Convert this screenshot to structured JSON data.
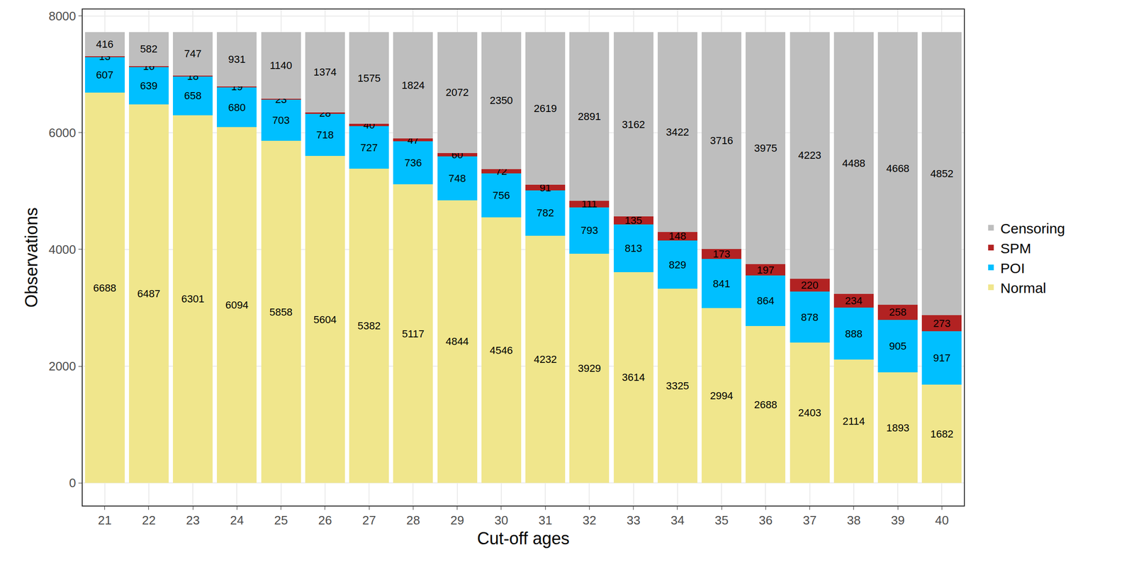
{
  "chart_data": {
    "type": "bar",
    "stacked": true,
    "data_labels": true,
    "grid": true,
    "legend": "right",
    "x_label": "Cut-off ages",
    "y_label": "Observations",
    "categories": [
      "21",
      "22",
      "23",
      "24",
      "25",
      "26",
      "27",
      "28",
      "29",
      "30",
      "31",
      "32",
      "33",
      "34",
      "35",
      "36",
      "37",
      "38",
      "39",
      "40"
    ],
    "ylim": [
      -386,
      8110
    ],
    "yticks": [
      0,
      2000,
      4000,
      6000,
      8000
    ],
    "series": [
      {
        "name": "Normal",
        "color": "#F0E68C",
        "values": [
          6688,
          6487,
          6301,
          6094,
          5858,
          5604,
          5382,
          5117,
          4844,
          4546,
          4232,
          3929,
          3614,
          3325,
          2994,
          2688,
          2403,
          2114,
          1893,
          1682
        ]
      },
      {
        "name": "POI",
        "color": "#00BFFF",
        "values": [
          607,
          639,
          658,
          680,
          703,
          718,
          727,
          736,
          748,
          756,
          782,
          793,
          813,
          829,
          841,
          864,
          878,
          888,
          905,
          917
        ]
      },
      {
        "name": "SPM",
        "color": "#B22222",
        "values": [
          13,
          16,
          18,
          19,
          23,
          28,
          40,
          47,
          60,
          72,
          91,
          111,
          135,
          148,
          173,
          197,
          220,
          234,
          258,
          273
        ]
      },
      {
        "name": "Censoring",
        "color": "#BEBEBE",
        "values": [
          416,
          582,
          747,
          931,
          1140,
          1374,
          1575,
          1824,
          2072,
          2350,
          2619,
          2891,
          3162,
          3422,
          3716,
          3975,
          4223,
          4488,
          4668,
          4852
        ]
      }
    ]
  }
}
